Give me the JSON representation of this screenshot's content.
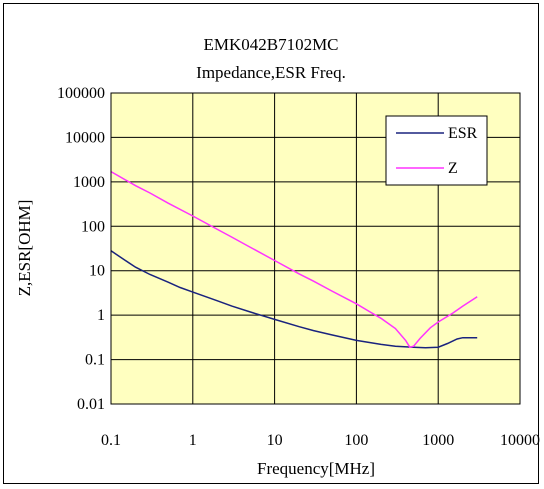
{
  "chart_data": {
    "type": "line",
    "title": "EMK042B7102MC",
    "subtitle": "Impedance,ESR Freq.",
    "xlabel": "Frequency[MHz]",
    "ylabel": "Z,ESR[OHM]",
    "x_scale": "log",
    "y_scale": "log",
    "xlim": [
      0.1,
      10000
    ],
    "ylim": [
      0.01,
      100000
    ],
    "x_ticks": [
      "0.1",
      "1",
      "10",
      "100",
      "1000",
      "10000"
    ],
    "y_ticks": [
      "100000",
      "10000",
      "1000",
      "100",
      "10",
      "1",
      "0.1",
      "0.01"
    ],
    "grid": true,
    "plot_background": "#ffffc0",
    "legend_position": "top-right",
    "series": [
      {
        "name": "ESR",
        "color": "#1a237e",
        "points": [
          [
            0.1,
            28
          ],
          [
            0.15,
            17
          ],
          [
            0.2,
            12
          ],
          [
            0.3,
            8.2
          ],
          [
            0.5,
            5.5
          ],
          [
            0.7,
            4.2
          ],
          [
            1,
            3.3
          ],
          [
            2,
            2.1
          ],
          [
            3,
            1.6
          ],
          [
            5,
            1.18
          ],
          [
            10,
            0.8
          ],
          [
            20,
            0.55
          ],
          [
            30,
            0.45
          ],
          [
            50,
            0.36
          ],
          [
            100,
            0.27
          ],
          [
            200,
            0.22
          ],
          [
            300,
            0.2
          ],
          [
            500,
            0.19
          ],
          [
            700,
            0.185
          ],
          [
            1000,
            0.19
          ],
          [
            1300,
            0.23
          ],
          [
            1700,
            0.29
          ],
          [
            2000,
            0.31
          ],
          [
            3000,
            0.31
          ]
        ]
      },
      {
        "name": "Z",
        "color": "#ff33ff",
        "points": [
          [
            0.1,
            1700
          ],
          [
            0.2,
            820
          ],
          [
            0.3,
            560
          ],
          [
            0.5,
            330
          ],
          [
            1,
            170
          ],
          [
            2,
            85
          ],
          [
            3,
            57
          ],
          [
            5,
            34
          ],
          [
            10,
            17
          ],
          [
            20,
            8.5
          ],
          [
            30,
            5.8
          ],
          [
            50,
            3.5
          ],
          [
            100,
            1.8
          ],
          [
            150,
            1.15
          ],
          [
            200,
            0.85
          ],
          [
            300,
            0.5
          ],
          [
            400,
            0.27
          ],
          [
            450,
            0.19
          ],
          [
            500,
            0.2
          ],
          [
            600,
            0.3
          ],
          [
            800,
            0.52
          ],
          [
            1000,
            0.7
          ],
          [
            1500,
            1.1
          ],
          [
            2000,
            1.6
          ],
          [
            3000,
            2.6
          ]
        ]
      }
    ]
  }
}
